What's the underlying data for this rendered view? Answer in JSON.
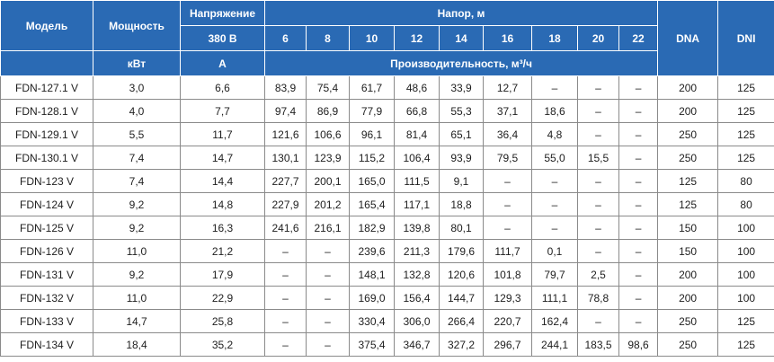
{
  "header": {
    "model": "Модель",
    "power": "Мощность",
    "power_unit": "кВт",
    "voltage": "Напряжение",
    "voltage_value": "380 В",
    "current_unit": "А",
    "head": "Напор, м",
    "head_values": [
      "6",
      "8",
      "10",
      "12",
      "14",
      "16",
      "18",
      "20",
      "22"
    ],
    "capacity": "Производительность, м³/ч",
    "dna": "DNA",
    "dni": "DNI"
  },
  "rows": [
    {
      "model": "FDN-127.1 V",
      "power": "3,0",
      "current": "6,6",
      "flows": [
        "83,9",
        "75,4",
        "61,7",
        "48,6",
        "33,9",
        "12,7",
        "–",
        "–",
        "–"
      ],
      "dna": "200",
      "dni": "125"
    },
    {
      "model": "FDN-128.1 V",
      "power": "4,0",
      "current": "7,7",
      "flows": [
        "97,4",
        "86,9",
        "77,9",
        "66,8",
        "55,3",
        "37,1",
        "18,6",
        "–",
        "–"
      ],
      "dna": "200",
      "dni": "125"
    },
    {
      "model": "FDN-129.1 V",
      "power": "5,5",
      "current": "11,7",
      "flows": [
        "121,6",
        "106,6",
        "96,1",
        "81,4",
        "65,1",
        "36,4",
        "4,8",
        "–",
        "–"
      ],
      "dna": "250",
      "dni": "125"
    },
    {
      "model": "FDN-130.1 V",
      "power": "7,4",
      "current": "14,7",
      "flows": [
        "130,1",
        "123,9",
        "115,2",
        "106,4",
        "93,9",
        "79,5",
        "55,0",
        "15,5",
        "–"
      ],
      "dna": "250",
      "dni": "125"
    },
    {
      "model": "FDN-123 V",
      "power": "7,4",
      "current": "14,4",
      "flows": [
        "227,7",
        "200,1",
        "165,0",
        "111,5",
        "9,1",
        "–",
        "–",
        "–",
        "–"
      ],
      "dna": "125",
      "dni": "80"
    },
    {
      "model": "FDN-124 V",
      "power": "9,2",
      "current": "14,8",
      "flows": [
        "227,9",
        "201,2",
        "165,4",
        "117,1",
        "18,8",
        "–",
        "–",
        "–",
        "–"
      ],
      "dna": "125",
      "dni": "80"
    },
    {
      "model": "FDN-125 V",
      "power": "9,2",
      "current": "16,3",
      "flows": [
        "241,6",
        "216,1",
        "182,9",
        "139,8",
        "80,1",
        "–",
        "–",
        "–",
        "–"
      ],
      "dna": "150",
      "dni": "100"
    },
    {
      "model": "FDN-126 V",
      "power": "11,0",
      "current": "21,2",
      "flows": [
        "–",
        "–",
        "239,6",
        "211,3",
        "179,6",
        "111,7",
        "0,1",
        "–",
        "–"
      ],
      "dna": "150",
      "dni": "100"
    },
    {
      "model": "FDN-131 V",
      "power": "9,2",
      "current": "17,9",
      "flows": [
        "–",
        "–",
        "148,1",
        "132,8",
        "120,6",
        "101,8",
        "79,7",
        "2,5",
        "–"
      ],
      "dna": "200",
      "dni": "100"
    },
    {
      "model": "FDN-132 V",
      "power": "11,0",
      "current": "22,9",
      "flows": [
        "–",
        "–",
        "169,0",
        "156,4",
        "144,7",
        "129,3",
        "111,1",
        "78,8",
        "–"
      ],
      "dna": "200",
      "dni": "100"
    },
    {
      "model": "FDN-133 V",
      "power": "14,7",
      "current": "25,8",
      "flows": [
        "–",
        "–",
        "330,4",
        "306,0",
        "266,4",
        "220,7",
        "162,4",
        "–",
        "–"
      ],
      "dna": "250",
      "dni": "125"
    },
    {
      "model": "FDN-134 V",
      "power": "18,4",
      "current": "35,2",
      "flows": [
        "–",
        "–",
        "375,4",
        "346,7",
        "327,2",
        "296,7",
        "244,1",
        "183,5",
        "98,6"
      ],
      "dna": "250",
      "dni": "125"
    }
  ]
}
